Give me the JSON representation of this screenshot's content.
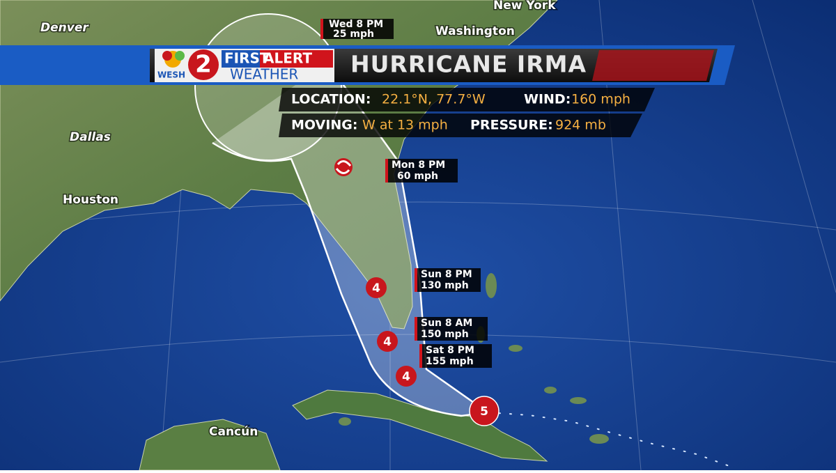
{
  "header": {
    "station": "WESH",
    "channel": "2",
    "brand_a": "FIRST",
    "brand_b": "ALERT",
    "brand_c": "WEATHER",
    "title": "HURRICANE IRMA"
  },
  "stats": [
    {
      "label": "LOCATION:",
      "value": "22.1°N, 77.7°W"
    },
    {
      "label": "WIND:",
      "value": "160 mph"
    },
    {
      "label": "MOVING:",
      "value": "W at 13 mph"
    },
    {
      "label": "PRESSURE:",
      "value": "924 mb"
    }
  ],
  "places": [
    "Denver",
    "New York",
    "Washington",
    "Dallas",
    "Houston",
    "Cancún"
  ],
  "forecast_points": [
    {
      "time": "Wed 8 PM",
      "wind": "25 mph"
    },
    {
      "time": "Mon 8 PM",
      "wind": "60 mph"
    },
    {
      "time": "Sun 8 PM",
      "wind": "130 mph",
      "category": "4"
    },
    {
      "time": "Sun 8 AM",
      "wind": "150 mph",
      "category": "4"
    },
    {
      "time": "Sat 8 PM",
      "wind": "155 mph",
      "category": "4"
    }
  ],
  "current": {
    "category": "5"
  }
}
